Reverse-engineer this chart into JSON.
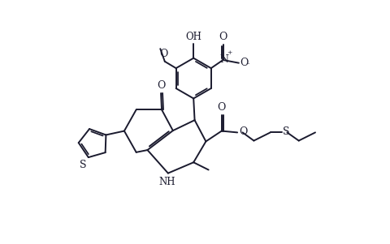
{
  "background_color": "#ffffff",
  "line_color": "#1a1a2e",
  "line_width": 1.4,
  "font_size": 8.5,
  "figure_width": 4.81,
  "figure_height": 3.01,
  "dpi": 100,
  "xlim": [
    0.0,
    10.0
  ],
  "ylim": [
    0.0,
    6.5
  ]
}
